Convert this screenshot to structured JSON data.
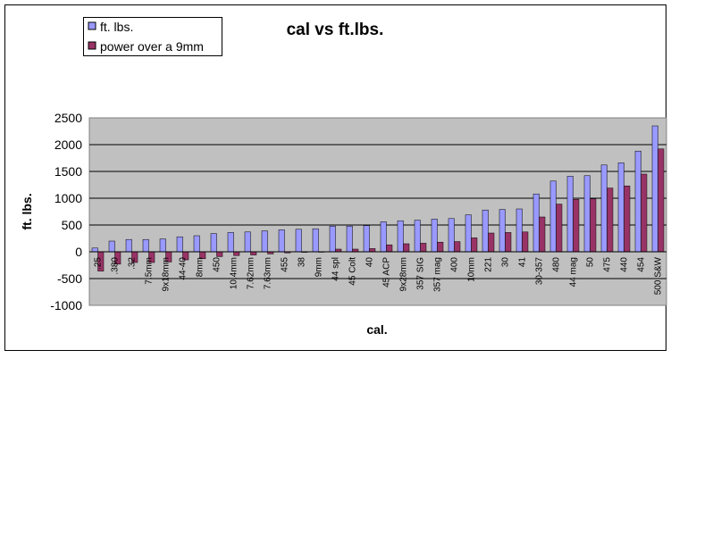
{
  "chart_data": {
    "type": "bar",
    "title": "cal vs ft.lbs.",
    "xlabel": "cal.",
    "ylabel": "ft. lbs.",
    "ylim": [
      -1000,
      2500
    ],
    "yticks": [
      2500,
      2000,
      1500,
      1000,
      500,
      0,
      -500,
      -1000
    ],
    "grid": true,
    "legend": "top-left",
    "categories": [
      ".25",
      ".380",
      ".32",
      "7.5mm",
      "9x18mm",
      "44-40",
      "8mm",
      "450",
      "10.4mm",
      "7.62mm",
      "7.63mm",
      "455",
      "38",
      "9mm",
      "44 spl",
      "45 Colt",
      "40",
      "45 ACP",
      "9x28mm",
      "357 SIG",
      "357 mag",
      "400",
      "10mm",
      "221",
      "30",
      "41",
      "30-357",
      "480",
      "44 mag",
      "50",
      "475",
      "440",
      "454",
      "500 S&W"
    ],
    "series": [
      {
        "name": "ft. lbs.",
        "color": "#9999ff",
        "values": [
          70,
          200,
          230,
          230,
          240,
          280,
          300,
          340,
          360,
          370,
          390,
          410,
          420,
          430,
          480,
          480,
          490,
          560,
          580,
          590,
          610,
          620,
          690,
          780,
          790,
          800,
          1080,
          1320,
          1410,
          1420,
          1620,
          1660,
          1880,
          2350
        ]
      },
      {
        "name": "power over a 9mm",
        "color": "#993366",
        "values": [
          -360,
          -230,
          -200,
          -200,
          -190,
          -150,
          -130,
          -90,
          -70,
          -60,
          -40,
          -20,
          -10,
          0,
          50,
          50,
          60,
          130,
          150,
          160,
          180,
          190,
          260,
          350,
          360,
          370,
          650,
          890,
          980,
          990,
          1190,
          1230,
          1450,
          1920
        ]
      }
    ]
  }
}
